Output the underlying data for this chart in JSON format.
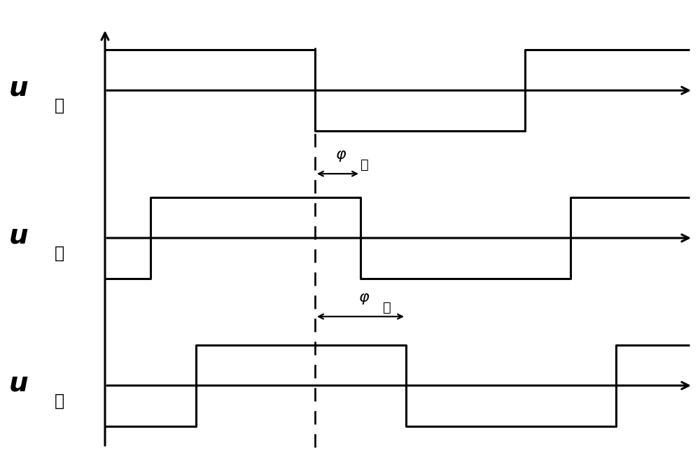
{
  "background_color": "#ffffff",
  "line_color": "#000000",
  "lw": 2.2,
  "xlim": [
    0,
    10
  ],
  "ylim": [
    0,
    10
  ],
  "x_wstart": 1.5,
  "x_end": 9.85,
  "dashed_x": 4.5,
  "Thalf": 3.0,
  "amp": 0.85,
  "y_jia": 8.1,
  "y_yi": 5.0,
  "y_bing": 1.9,
  "phi_yi_val": 0.65,
  "phi_bing_val": 1.3,
  "label_fontsize": 28,
  "sub_fontsize": 17,
  "annot_fontsize": 16
}
